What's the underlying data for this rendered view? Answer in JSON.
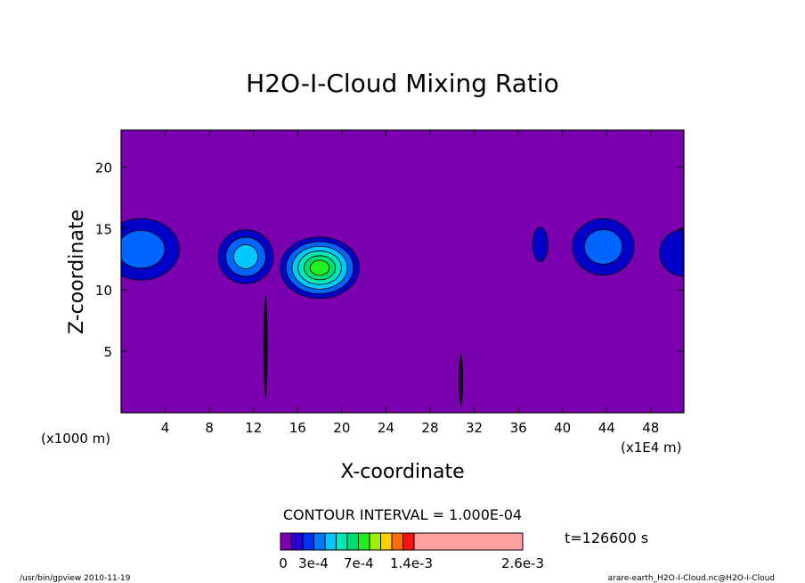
{
  "title": "H2O-I-Cloud Mixing Ratio",
  "chart_data": {
    "type": "heatmap",
    "title": "H2O-I-Cloud Mixing Ratio",
    "xlabel": "X-coordinate",
    "ylabel": "Z-coordinate",
    "x_unit_left": "(x1000 m)",
    "x_unit_right": "(x1E4 m)",
    "xlim": [
      0,
      51
    ],
    "ylim": [
      0,
      23
    ],
    "x_ticks": [
      4,
      8,
      12,
      16,
      20,
      24,
      28,
      32,
      36,
      40,
      44,
      48
    ],
    "y_ticks": [
      5,
      10,
      15,
      20
    ],
    "x_tick_labels": [
      "4",
      "8",
      "12",
      "16",
      "20",
      "24",
      "28",
      "32",
      "36",
      "40",
      "44",
      "48"
    ],
    "y_tick_labels": [
      "5",
      "10",
      "15",
      "20"
    ],
    "background_color": "#7b00b0",
    "contour_interval_text": "CONTOUR INTERVAL = 1.000E-04",
    "time_text": "t=126600 s",
    "colorbar": {
      "colors": [
        "#7b00b0",
        "#2a00d4",
        "#0030f0",
        "#0078ff",
        "#00c8ff",
        "#00e8b8",
        "#00e070",
        "#20f020",
        "#a0f000",
        "#ffd000",
        "#ff7000",
        "#ff1010",
        "#ffa0a0"
      ],
      "tick_labels": [
        "0",
        "3e-4",
        "7e-4",
        "1.4e-3",
        "2.6e-3"
      ]
    },
    "features": [
      {
        "name": "cloud-left-edge",
        "x": 1.8,
        "z": 13.3,
        "rx": 3.5,
        "rz": 2.5,
        "levels": [
          "#0000c8",
          "#0064ff"
        ]
      },
      {
        "name": "cloud-near-11",
        "x": 11.3,
        "z": 12.7,
        "rx": 2.5,
        "rz": 2.2,
        "levels": [
          "#0000c8",
          "#0064ff",
          "#00c8ff"
        ]
      },
      {
        "name": "cloud-near-18",
        "x": 18.0,
        "z": 11.8,
        "rx": 3.6,
        "rz": 2.5,
        "levels": [
          "#0000c8",
          "#0064ff",
          "#00c8ff",
          "#00e8b8",
          "#00e070",
          "#20f020"
        ]
      },
      {
        "name": "cloud-near-38",
        "x": 38.0,
        "z": 13.7,
        "rx": 0.7,
        "rz": 1.4,
        "levels": [
          "#0000c8"
        ]
      },
      {
        "name": "cloud-near-44",
        "x": 43.7,
        "z": 13.5,
        "rx": 2.8,
        "rz": 2.3,
        "levels": [
          "#0000c8",
          "#0064ff"
        ]
      },
      {
        "name": "cloud-right-edge",
        "x": 51.0,
        "z": 13.0,
        "rx": 2.2,
        "rz": 1.9,
        "levels": [
          "#0000c8"
        ]
      }
    ],
    "streaks": [
      {
        "name": "streak-near-13",
        "x": 13.1,
        "z0": 1.2,
        "z1": 9.6
      },
      {
        "name": "streak-near-31",
        "x": 30.8,
        "z0": 0.5,
        "z1": 4.8
      }
    ]
  },
  "footer": {
    "left": "/usr/bin/gpview   2010-11-19",
    "right": "arare-earth_H2O-I-Cloud.nc@H2O-I-Cloud"
  }
}
